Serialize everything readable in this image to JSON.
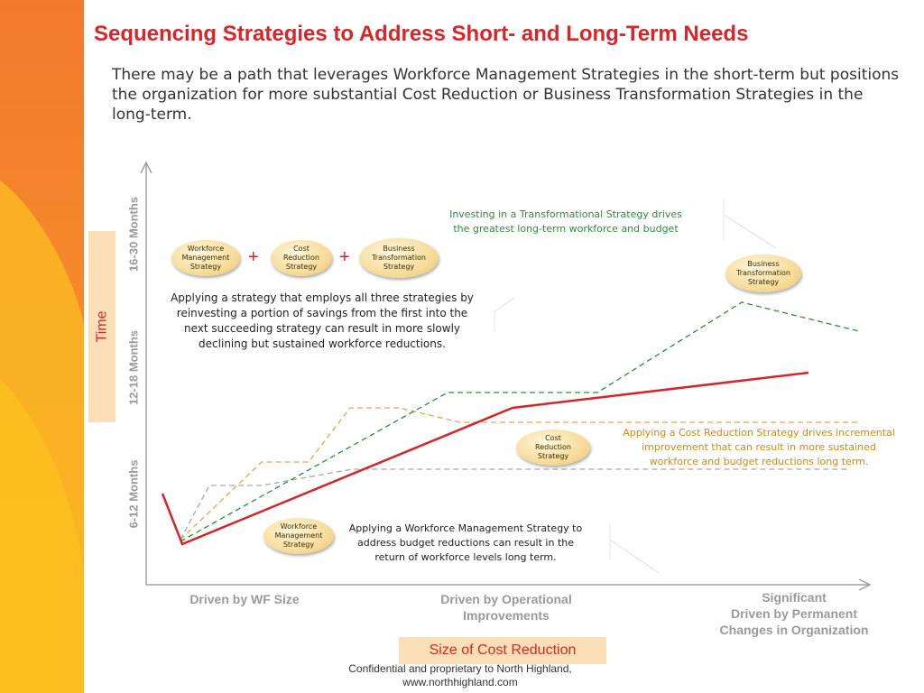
{
  "title": "Sequencing Strategies to Address Short- and Long-Term Needs",
  "subtitle": "There may be a path that leverages Workforce Management Strategies in the short-term but positions the organization for more substantial Cost Reduction or Business Transformation Strategies in the long-term.",
  "y_axis": {
    "title": "Time",
    "labels": [
      "6-12 Months",
      "12-18 Months",
      "16-30  Months"
    ]
  },
  "x_axis": {
    "title": "Size of Cost Reduction",
    "categories": [
      [
        "Driven by WF Size"
      ],
      [
        "Driven by Operational",
        "Improvements"
      ],
      [
        "Significant",
        "Driven by Permanent",
        "Changes in Organization"
      ]
    ]
  },
  "badges": {
    "wfm": [
      "Workforce",
      "Management",
      "Strategy"
    ],
    "cost": [
      "Cost",
      "Reduction",
      "Strategy"
    ],
    "bt": [
      "Business",
      "Transformation",
      "Strategy"
    ],
    "plus": "+"
  },
  "annotations": {
    "combined": "Applying a strategy that employs all three strategies by reinvesting a portion of savings from the first into the next succeeding strategy can result in more slowly declining but sustained workforce reductions.",
    "transform": "Investing in a Transformational Strategy drives the greatest long-term workforce and budget",
    "cost": "Applying a Cost Reduction Strategy drives incremental improvement that can result in more sustained workforce and budget reductions long term.",
    "wfm": "Applying a Workforce Management Strategy to address budget reductions can result in the return of workforce levels long term."
  },
  "colors": {
    "title": "#d6262a",
    "combined_line": "#d1262b",
    "transform_line": "#2e8b3e",
    "cost_line": "#f0a050",
    "wfm_line": "#a8a8a8",
    "transform_text": "#2e8b3e",
    "cost_text": "#d08a10"
  },
  "footer": [
    "Confidential and proprietary to North Highland,",
    "www.northhighland.com"
  ]
}
